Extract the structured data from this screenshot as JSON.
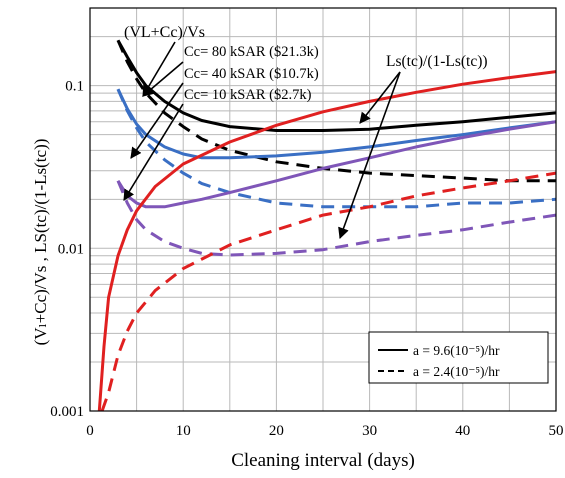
{
  "chart_data": {
    "type": "line",
    "xlabel": "Cleaning interval (days)",
    "ylabel": "(Vₗ+Cc)/Vs , LS(tc)/(1-Ls(tc))",
    "xlim": [
      0,
      50
    ],
    "ylim": [
      0.001,
      0.3
    ],
    "yscale": "log",
    "grid": true,
    "xticks": [
      0,
      10,
      20,
      30,
      40,
      50
    ],
    "yticks": [
      0.001,
      0.01,
      0.1
    ],
    "ytick_labels": [
      "0.001",
      "0.01",
      "0.1"
    ],
    "legend": {
      "placement": "bottom-right",
      "entries": [
        {
          "label": "a = 9.6(10⁻⁵)/hr",
          "style": "solid"
        },
        {
          "label": "a = 2.4(10⁻⁵)/hr",
          "style": "dashed"
        }
      ]
    },
    "annotations": [
      "(VL+Cc)/Vs",
      "Cc= 80 kSAR ($21.3k)",
      "Cc= 40 kSAR ($10.7k)",
      "Cc= 10 kSAR ($2.7k)",
      "Ls(tc)/(1-Ls(tc))"
    ],
    "series": [
      {
        "color": "#000000",
        "dash": false,
        "x": [
          3,
          4,
          5,
          6,
          8,
          10,
          12,
          15,
          20,
          25,
          30,
          35,
          40,
          45,
          50
        ],
        "y": [
          0.19,
          0.15,
          0.12,
          0.1,
          0.08,
          0.068,
          0.061,
          0.056,
          0.053,
          0.053,
          0.054,
          0.057,
          0.06,
          0.064,
          0.068
        ]
      },
      {
        "color": "#000000",
        "dash": true,
        "x": [
          3,
          4,
          5,
          6,
          8,
          10,
          12,
          15,
          20,
          25,
          30,
          35,
          40,
          45,
          50
        ],
        "y": [
          0.19,
          0.14,
          0.11,
          0.09,
          0.068,
          0.056,
          0.047,
          0.04,
          0.034,
          0.031,
          0.029,
          0.028,
          0.027,
          0.026,
          0.026
        ]
      },
      {
        "color": "#3a6fc4",
        "dash": false,
        "x": [
          3,
          4,
          5,
          6,
          8,
          10,
          12,
          15,
          20,
          25,
          30,
          35,
          40,
          45,
          50
        ],
        "y": [
          0.095,
          0.072,
          0.058,
          0.05,
          0.042,
          0.038,
          0.036,
          0.036,
          0.037,
          0.039,
          0.042,
          0.046,
          0.05,
          0.055,
          0.06
        ]
      },
      {
        "color": "#3a6fc4",
        "dash": true,
        "x": [
          3,
          4,
          5,
          6,
          8,
          10,
          12,
          15,
          20,
          25,
          30,
          35,
          40,
          45,
          50
        ],
        "y": [
          0.095,
          0.07,
          0.055,
          0.045,
          0.035,
          0.029,
          0.025,
          0.022,
          0.019,
          0.018,
          0.018,
          0.018,
          0.019,
          0.019,
          0.02
        ]
      },
      {
        "color": "#7f56b8",
        "dash": false,
        "x": [
          3,
          4,
          5,
          6,
          8,
          10,
          12,
          15,
          20,
          25,
          30,
          35,
          40,
          45,
          50
        ],
        "y": [
          0.026,
          0.021,
          0.019,
          0.018,
          0.018,
          0.019,
          0.02,
          0.022,
          0.026,
          0.031,
          0.036,
          0.042,
          0.048,
          0.054,
          0.06
        ]
      },
      {
        "color": "#7f56b8",
        "dash": true,
        "x": [
          3,
          4,
          5,
          6,
          8,
          10,
          12,
          15,
          20,
          25,
          30,
          35,
          40,
          45,
          50
        ],
        "y": [
          0.026,
          0.019,
          0.015,
          0.013,
          0.011,
          0.01,
          0.0093,
          0.0091,
          0.0093,
          0.0098,
          0.011,
          0.012,
          0.013,
          0.0145,
          0.016
        ]
      },
      {
        "color": "#e02020",
        "dash": false,
        "x": [
          1,
          1.5,
          2,
          3,
          4,
          5,
          7,
          10,
          15,
          20,
          25,
          30,
          35,
          40,
          45,
          50
        ],
        "y": [
          0.001,
          0.0025,
          0.005,
          0.009,
          0.013,
          0.017,
          0.024,
          0.033,
          0.045,
          0.057,
          0.069,
          0.08,
          0.091,
          0.102,
          0.112,
          0.122
        ]
      },
      {
        "color": "#e02020",
        "dash": true,
        "x": [
          1.3,
          2,
          3,
          4,
          5,
          7,
          10,
          15,
          20,
          25,
          30,
          35,
          40,
          45,
          50
        ],
        "y": [
          0.001,
          0.0013,
          0.0022,
          0.0031,
          0.004,
          0.0055,
          0.0075,
          0.0105,
          0.013,
          0.016,
          0.018,
          0.021,
          0.0235,
          0.026,
          0.029
        ]
      }
    ]
  }
}
